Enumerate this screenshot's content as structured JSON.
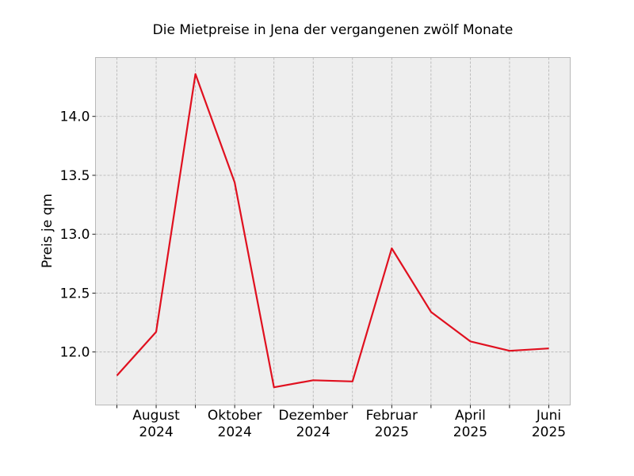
{
  "chart_data": {
    "type": "line",
    "title": "Die Mietpreise in Jena der vergangenen zwölf Monate",
    "xlabel": "",
    "ylabel": "Preis je qm",
    "x": [
      "2024-07",
      "2024-08",
      "2024-09",
      "2024-10",
      "2024-11",
      "2024-12",
      "2025-01",
      "2025-02",
      "2025-03",
      "2025-04",
      "2025-05",
      "2025-06"
    ],
    "series": [
      {
        "values": [
          11.8,
          12.17,
          14.36,
          13.44,
          11.7,
          11.76,
          11.75,
          12.88,
          12.34,
          12.09,
          12.01,
          12.03
        ]
      }
    ],
    "ylim": [
      11.55,
      14.5
    ],
    "yticks": [
      12.0,
      12.5,
      13.0,
      13.5,
      14.0
    ],
    "ytick_labels": [
      "12.0",
      "12.5",
      "13.0",
      "13.5",
      "14.0"
    ],
    "xtick_labels": [
      {
        "x": "2024-08",
        "line1": "August",
        "line2": "2024"
      },
      {
        "x": "2024-10",
        "line1": "Oktober",
        "line2": "2024"
      },
      {
        "x": "2024-12",
        "line1": "Dezember",
        "line2": "2024"
      },
      {
        "x": "2025-02",
        "line1": "Februar",
        "line2": "2025"
      },
      {
        "x": "2025-04",
        "line1": "April",
        "line2": "2025"
      },
      {
        "x": "2025-06",
        "line1": "Juni",
        "line2": "2025"
      }
    ],
    "line_color": "#e0101f",
    "grid": true,
    "legend": "none"
  }
}
